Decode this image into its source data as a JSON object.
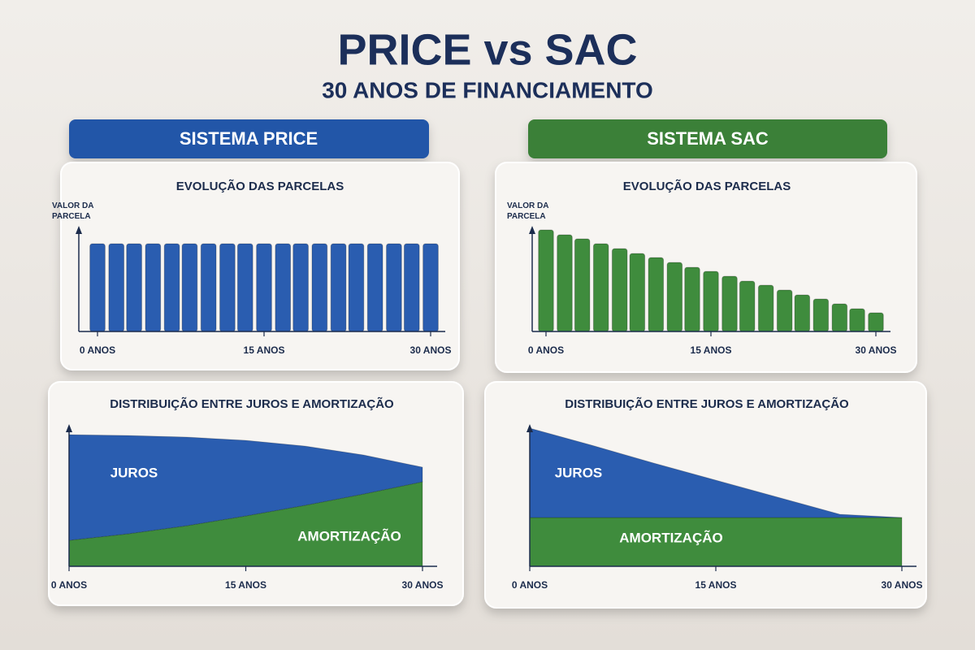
{
  "title": "PRICE vs SAC",
  "subtitle": "30 ANOS DE FINANCIAMENTO",
  "sections": [
    "SISTEMA PRICE",
    "SISTEMA SAC"
  ],
  "chart_data": [
    {
      "type": "bar",
      "title": "EVOLUÇÃO DAS PARCELAS",
      "y_label": "VALOR DA PARCELA",
      "x": [
        0,
        1.7,
        3.3,
        5,
        6.7,
        8.3,
        10,
        11.7,
        13.3,
        15,
        16.7,
        18.3,
        20,
        21.7,
        23.3,
        25,
        26.7,
        28.3,
        30
      ],
      "values": [
        108,
        108,
        108,
        108,
        108,
        108,
        108,
        108,
        108,
        108,
        108,
        108,
        108,
        108,
        108,
        108,
        108,
        108,
        108
      ],
      "color": "#2a5db0",
      "xlim": [
        0,
        30
      ],
      "xticks": [
        {
          "value": 0,
          "label": "0 ANOS"
        },
        {
          "value": 15,
          "label": "15 ANOS"
        },
        {
          "value": 30,
          "label": "30 ANOS"
        }
      ],
      "ylim": [
        0,
        130
      ]
    },
    {
      "type": "bar",
      "title": "EVOLUÇÃO DAS PARCELAS",
      "y_label": "VALOR DA PARCELA",
      "x": [
        0,
        1.7,
        3.3,
        5,
        6.7,
        8.3,
        10,
        11.7,
        13.3,
        15,
        16.7,
        18.3,
        20,
        21.7,
        23.3,
        25,
        26.7,
        28.3,
        30
      ],
      "values": [
        125,
        119,
        114,
        108,
        102,
        96,
        91,
        85,
        79,
        74,
        68,
        62,
        57,
        51,
        45,
        40,
        34,
        28,
        23
      ],
      "color": "#3f8c3d",
      "xlim": [
        0,
        30
      ],
      "xticks": [
        {
          "value": 0,
          "label": "0 ANOS"
        },
        {
          "value": 15,
          "label": "15 ANOS"
        },
        {
          "value": 30,
          "label": "30 ANOS"
        }
      ],
      "ylim": [
        0,
        130
      ]
    },
    {
      "type": "area",
      "stacked": true,
      "title": "DISTRIBUIÇÃO ENTRE JUROS E AMORTIZAÇÃO",
      "x": [
        0,
        5,
        10,
        15,
        20,
        25,
        30
      ],
      "series": [
        {
          "name": "AMORTIZAÇÃO",
          "color": "#3f8c3d",
          "values": [
            32,
            40,
            50,
            62,
            75,
            89,
            104
          ]
        },
        {
          "name": "JUROS",
          "color": "#2a5db0",
          "values": [
            130,
            121,
            109,
            93,
            73,
            48,
            18
          ]
        }
      ],
      "xlim": [
        0,
        30
      ],
      "xticks": [
        {
          "value": 0,
          "label": "0 ANOS"
        },
        {
          "value": 15,
          "label": "15 ANOS"
        },
        {
          "value": 30,
          "label": "30 ANOS"
        }
      ],
      "ylim": [
        0,
        175
      ]
    },
    {
      "type": "area",
      "stacked": true,
      "title": "DISTRIBUIÇÃO ENTRE JUROS E AMORTIZAÇÃO",
      "x": [
        0,
        5,
        10,
        15,
        20,
        25,
        30
      ],
      "series": [
        {
          "name": "AMORTIZAÇÃO",
          "color": "#3f8c3d",
          "values": [
            60,
            60,
            60,
            60,
            60,
            60,
            60
          ]
        },
        {
          "name": "JUROS",
          "color": "#2a5db0",
          "values": [
            110,
            89,
            67,
            46,
            25,
            4,
            0
          ]
        }
      ],
      "xlim": [
        0,
        30
      ],
      "xticks": [
        {
          "value": 0,
          "label": "0 ANOS"
        },
        {
          "value": 15,
          "label": "15 ANOS"
        },
        {
          "value": 30,
          "label": "30 ANOS"
        }
      ],
      "ylim": [
        0,
        175
      ]
    }
  ]
}
